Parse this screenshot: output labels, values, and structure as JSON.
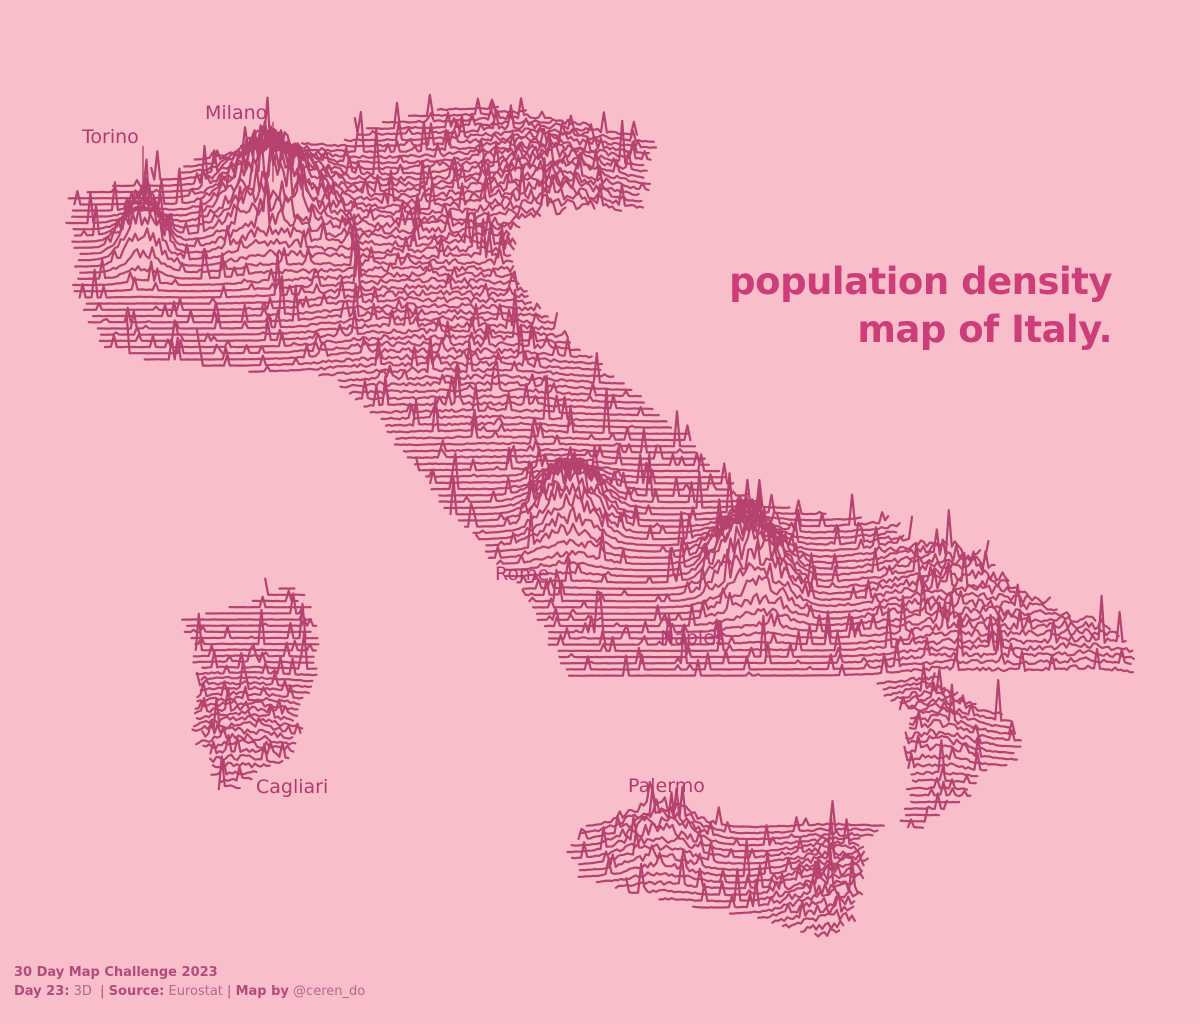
{
  "title": {
    "line1": "population density",
    "line2": "map of Italy."
  },
  "cities": [
    {
      "key": "torino",
      "name": "Torino"
    },
    {
      "key": "milano",
      "name": "Milano"
    },
    {
      "key": "rome",
      "name": "Rome"
    },
    {
      "key": "naples",
      "name": "Naples"
    },
    {
      "key": "cagliari",
      "name": "Cagliari"
    },
    {
      "key": "palermo",
      "name": "Palermo"
    }
  ],
  "footer": {
    "challenge": "30 Day Map Challenge 2023",
    "day_label": "Day 23:",
    "day_value": "3D",
    "source_label": "Source:",
    "source_value": "Eurostat",
    "map_by_label": "Map by",
    "map_by_value": "@ceren_do"
  },
  "colors": {
    "background": "#f8bec9",
    "line": "#b5426f",
    "title": "#cc3d79",
    "label": "#b23a70"
  }
}
